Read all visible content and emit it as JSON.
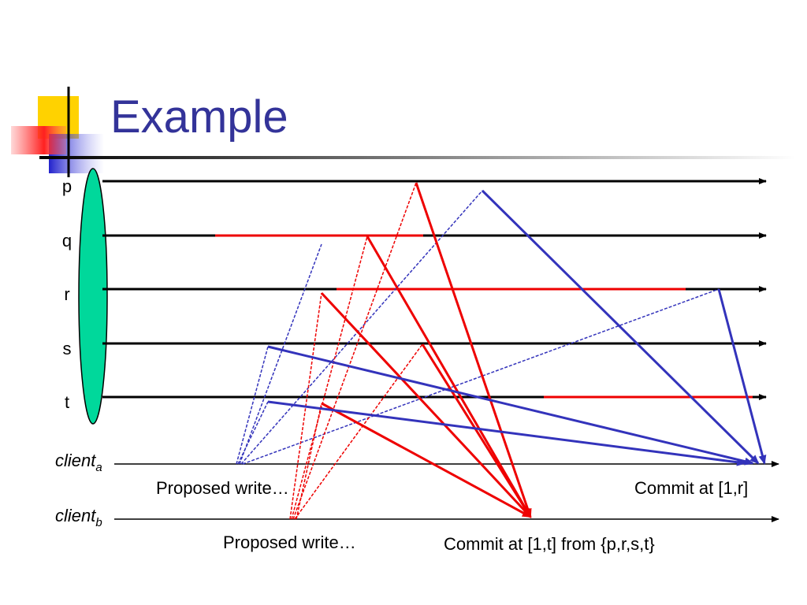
{
  "title": "Example",
  "processes": [
    {
      "label": "p"
    },
    {
      "label": "q"
    },
    {
      "label": "r"
    },
    {
      "label": "s"
    },
    {
      "label": "t"
    }
  ],
  "clients": [
    {
      "name": "client",
      "sub": "a"
    },
    {
      "name": "client",
      "sub": "b"
    }
  ],
  "annotations": [
    "Proposed write…",
    "Commit at [1,r]",
    "Proposed write…",
    "Commit at [1,t] from {p,r,s,t}"
  ]
}
